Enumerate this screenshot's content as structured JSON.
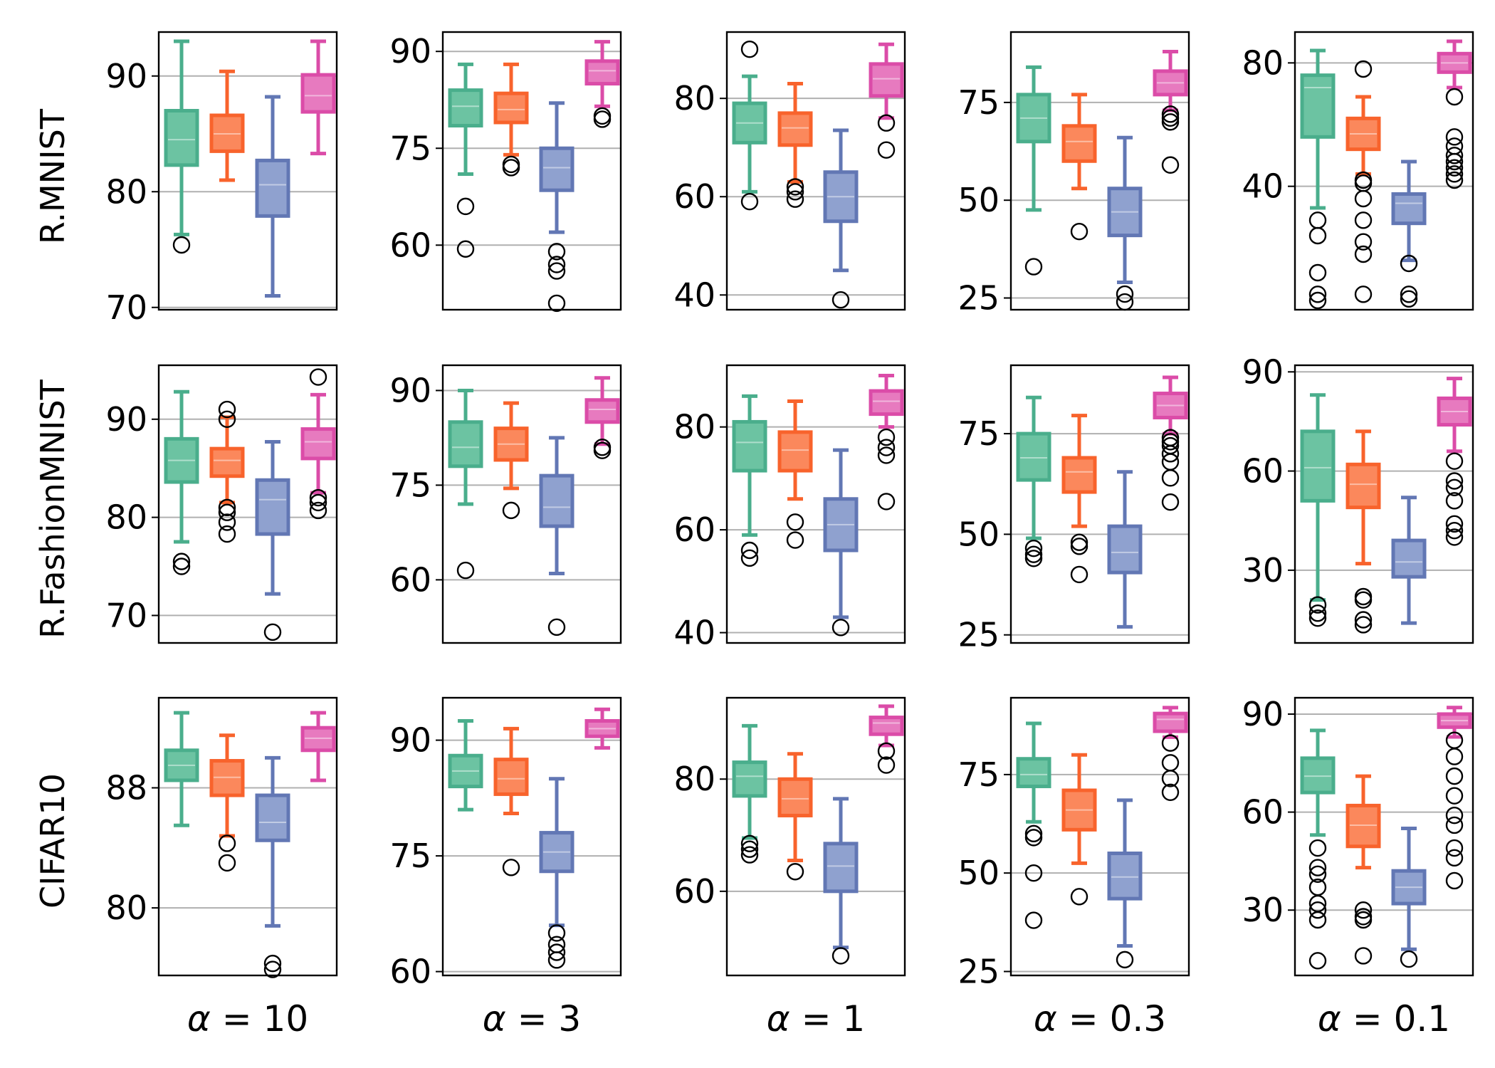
{
  "colors": {
    "series": [
      "#4aae8c",
      "#f8632c",
      "#6277b4",
      "#db4ca8"
    ],
    "fill": [
      "#6cc3a2",
      "#fb885c",
      "#8fa1cf",
      "#e77abf"
    ],
    "grid": "#b0b0b0"
  },
  "rows": [
    "R.MNIST",
    "R.FashionMNIST",
    "CIFAR10"
  ],
  "cols": [
    {
      "label": "α = 10",
      "var": "α",
      "value": "10"
    },
    {
      "label": "α = 3",
      "var": "α",
      "value": "3"
    },
    {
      "label": "α = 1",
      "var": "α",
      "value": "1"
    },
    {
      "label": "α = 0.3",
      "var": "α",
      "value": "0.3"
    },
    {
      "label": "α = 0.1",
      "var": "α",
      "value": "0.1"
    }
  ],
  "chart_data": [
    {
      "type": "box",
      "row": "R.MNIST",
      "col": "α = 10",
      "ylim": [
        69.8,
        93.8
      ],
      "yticks": [
        70,
        80,
        90
      ],
      "grid": true,
      "boxes": [
        {
          "q1": 82.3,
          "median": 84.5,
          "q3": 87.0,
          "whislo": 76.3,
          "whishi": 93.0,
          "fliers": [
            75.4
          ]
        },
        {
          "q1": 83.5,
          "median": 85.0,
          "q3": 86.6,
          "whislo": 81.0,
          "whishi": 90.4,
          "fliers": []
        },
        {
          "q1": 77.9,
          "median": 80.6,
          "q3": 82.7,
          "whislo": 71.0,
          "whishi": 88.2,
          "fliers": []
        },
        {
          "q1": 86.9,
          "median": 88.3,
          "q3": 90.1,
          "whislo": 83.3,
          "whishi": 93.0,
          "fliers": []
        }
      ]
    },
    {
      "type": "box",
      "row": "R.MNIST",
      "col": "α = 3",
      "ylim": [
        50,
        93
      ],
      "yticks": [
        60,
        75,
        90
      ],
      "grid": true,
      "boxes": [
        {
          "q1": 78.5,
          "median": 81.5,
          "q3": 84.0,
          "whislo": 71.0,
          "whishi": 88.0,
          "fliers": [
            66.0,
            59.4
          ]
        },
        {
          "q1": 79.0,
          "median": 81.0,
          "q3": 83.5,
          "whislo": 74.0,
          "whishi": 88.0,
          "fliers": [
            72.5,
            72.0
          ]
        },
        {
          "q1": 68.5,
          "median": 72.0,
          "q3": 75.0,
          "whislo": 62.0,
          "whishi": 82.0,
          "fliers": [
            59.0,
            57.0,
            56.0,
            51.0
          ]
        },
        {
          "q1": 85.0,
          "median": 87.0,
          "q3": 88.5,
          "whislo": 81.5,
          "whishi": 91.5,
          "fliers": [
            80.0,
            79.5
          ]
        }
      ]
    },
    {
      "type": "box",
      "row": "R.MNIST",
      "col": "α = 1",
      "ylim": [
        37,
        93.5
      ],
      "yticks": [
        40,
        60,
        80
      ],
      "grid": true,
      "boxes": [
        {
          "q1": 71.0,
          "median": 75.0,
          "q3": 79.0,
          "whislo": 61.0,
          "whishi": 84.5,
          "fliers": [
            59.0,
            90.0
          ]
        },
        {
          "q1": 70.5,
          "median": 74.0,
          "q3": 77.0,
          "whislo": 63.0,
          "whishi": 83.0,
          "fliers": [
            62.0,
            61.0,
            59.5
          ]
        },
        {
          "q1": 55.0,
          "median": 60.0,
          "q3": 65.0,
          "whislo": 45.0,
          "whishi": 73.5,
          "fliers": [
            39.0
          ]
        },
        {
          "q1": 80.5,
          "median": 84.0,
          "q3": 87.0,
          "whislo": 76.0,
          "whishi": 91.0,
          "fliers": [
            75.0,
            69.5
          ]
        }
      ]
    },
    {
      "type": "box",
      "row": "R.MNIST",
      "col": "α = 0.3",
      "ylim": [
        22,
        93
      ],
      "yticks": [
        25,
        50,
        75
      ],
      "grid": true,
      "boxes": [
        {
          "q1": 65.0,
          "median": 71.0,
          "q3": 77.0,
          "whislo": 47.5,
          "whishi": 84.0,
          "fliers": [
            33.0
          ]
        },
        {
          "q1": 60.0,
          "median": 65.0,
          "q3": 69.0,
          "whislo": 53.0,
          "whishi": 77.0,
          "fliers": [
            42.0
          ]
        },
        {
          "q1": 41.0,
          "median": 47.0,
          "q3": 53.0,
          "whislo": 29.0,
          "whishi": 66.0,
          "fliers": [
            26.0,
            24.0
          ]
        },
        {
          "q1": 77.0,
          "median": 80.0,
          "q3": 83.0,
          "whislo": 73.0,
          "whishi": 88.0,
          "fliers": [
            72.0,
            71.0,
            70.0,
            59.0
          ]
        }
      ]
    },
    {
      "type": "box",
      "row": "R.MNIST",
      "col": "α = 0.1",
      "ylim": [
        0,
        90
      ],
      "yticks": [
        40,
        80
      ],
      "grid": true,
      "boxes": [
        {
          "q1": 56.0,
          "median": 72.0,
          "q3": 76.0,
          "whislo": 33.0,
          "whishi": 84.0,
          "fliers": [
            29.0,
            24.0,
            12.0,
            5.0,
            3.0
          ]
        },
        {
          "q1": 52.0,
          "median": 57.0,
          "q3": 62.0,
          "whislo": 44.0,
          "whishi": 69.0,
          "fliers": [
            78.0,
            42.0,
            41.0,
            36.0,
            29.0,
            22.0,
            18.0,
            5.0
          ]
        },
        {
          "q1": 28.0,
          "median": 34.5,
          "q3": 37.5,
          "whislo": 16.0,
          "whishi": 48.0,
          "fliers": [
            15.0,
            5.0,
            3.5
          ]
        },
        {
          "q1": 77.0,
          "median": 80.0,
          "q3": 83.0,
          "whislo": 72.0,
          "whishi": 87.0,
          "fliers": [
            69.0,
            56.0,
            53.0,
            50.0,
            48.0,
            46.0,
            44.0,
            42.0
          ]
        }
      ]
    },
    {
      "type": "box",
      "row": "R.FashionMNIST",
      "col": "α = 10",
      "ylim": [
        67.2,
        95.5
      ],
      "yticks": [
        70,
        80,
        90
      ],
      "grid": true,
      "boxes": [
        {
          "q1": 83.6,
          "median": 85.8,
          "q3": 88.0,
          "whislo": 77.5,
          "whishi": 92.8,
          "fliers": [
            75.5,
            75.0
          ]
        },
        {
          "q1": 84.2,
          "median": 85.8,
          "q3": 87.0,
          "whislo": 81.5,
          "whishi": 90.2,
          "fliers": [
            91.0,
            90.0,
            81.0,
            80.5,
            79.5,
            78.3
          ]
        },
        {
          "q1": 78.3,
          "median": 81.8,
          "q3": 83.8,
          "whislo": 72.2,
          "whishi": 87.7,
          "fliers": [
            68.3
          ]
        },
        {
          "q1": 86.0,
          "median": 87.7,
          "q3": 89.0,
          "whislo": 82.5,
          "whishi": 92.5,
          "fliers": [
            94.3,
            82.0,
            81.5,
            80.7
          ]
        }
      ]
    },
    {
      "type": "box",
      "row": "R.FashionMNIST",
      "col": "α = 3",
      "ylim": [
        50,
        94
      ],
      "yticks": [
        60,
        75,
        90
      ],
      "grid": true,
      "boxes": [
        {
          "q1": 78.0,
          "median": 81.0,
          "q3": 85.0,
          "whislo": 72.0,
          "whishi": 90.0,
          "fliers": [
            61.5
          ]
        },
        {
          "q1": 79.0,
          "median": 81.5,
          "q3": 84.0,
          "whislo": 74.5,
          "whishi": 88.0,
          "fliers": [
            71.0
          ]
        },
        {
          "q1": 68.5,
          "median": 71.5,
          "q3": 76.5,
          "whislo": 61.0,
          "whishi": 82.5,
          "fliers": [
            52.5
          ]
        },
        {
          "q1": 85.0,
          "median": 87.0,
          "q3": 88.5,
          "whislo": 81.5,
          "whishi": 92.0,
          "fliers": [
            81.0,
            80.5
          ]
        }
      ]
    },
    {
      "type": "box",
      "row": "R.FashionMNIST",
      "col": "α = 1",
      "ylim": [
        38,
        92
      ],
      "yticks": [
        40,
        60,
        80
      ],
      "grid": true,
      "boxes": [
        {
          "q1": 71.5,
          "median": 77.0,
          "q3": 81.0,
          "whislo": 59.0,
          "whishi": 86.0,
          "fliers": [
            56.0,
            54.5
          ]
        },
        {
          "q1": 71.5,
          "median": 75.5,
          "q3": 79.0,
          "whislo": 66.0,
          "whishi": 85.0,
          "fliers": [
            61.5,
            58.0
          ]
        },
        {
          "q1": 56.0,
          "median": 61.0,
          "q3": 66.0,
          "whislo": 43.0,
          "whishi": 75.5,
          "fliers": [
            41.0
          ]
        },
        {
          "q1": 82.5,
          "median": 85.0,
          "q3": 87.0,
          "whislo": 80.0,
          "whishi": 90.0,
          "fliers": [
            78.0,
            76.0,
            74.5,
            65.5
          ]
        }
      ]
    },
    {
      "type": "box",
      "row": "R.FashionMNIST",
      "col": "α = 0.3",
      "ylim": [
        23,
        92
      ],
      "yticks": [
        25,
        50,
        75
      ],
      "grid": true,
      "boxes": [
        {
          "q1": 63.5,
          "median": 69.0,
          "q3": 75.0,
          "whislo": 49.0,
          "whishi": 84.0,
          "fliers": [
            46.5,
            45.0,
            44.0
          ]
        },
        {
          "q1": 60.5,
          "median": 65.5,
          "q3": 69.0,
          "whislo": 52.0,
          "whishi": 79.5,
          "fliers": [
            48.0,
            47.0,
            40.0
          ]
        },
        {
          "q1": 40.5,
          "median": 45.5,
          "q3": 52.0,
          "whislo": 27.0,
          "whishi": 65.5,
          "fliers": []
        },
        {
          "q1": 79.0,
          "median": 82.0,
          "q3": 85.0,
          "whislo": 75.0,
          "whishi": 89.0,
          "fliers": [
            74.0,
            73.0,
            72.0,
            70.0,
            68.0,
            64.0,
            58.0
          ]
        }
      ]
    },
    {
      "type": "box",
      "row": "R.FashionMNIST",
      "col": "α = 0.1",
      "ylim": [
        8,
        92
      ],
      "yticks": [
        30,
        60,
        90
      ],
      "grid": true,
      "boxes": [
        {
          "q1": 51.0,
          "median": 61.0,
          "q3": 72.0,
          "whislo": 21.0,
          "whishi": 83.0,
          "fliers": [
            19.5,
            17.0,
            15.5
          ]
        },
        {
          "q1": 49.0,
          "median": 56.0,
          "q3": 62.0,
          "whislo": 32.0,
          "whishi": 72.0,
          "fliers": [
            22.0,
            21.0,
            15.0,
            13.5
          ]
        },
        {
          "q1": 28.0,
          "median": 32.5,
          "q3": 39.0,
          "whislo": 14.0,
          "whishi": 52.0,
          "fliers": []
        },
        {
          "q1": 74.0,
          "median": 78.0,
          "q3": 82.0,
          "whislo": 66.0,
          "whishi": 88.0,
          "fliers": [
            63.0,
            57.0,
            55.0,
            51.0,
            44.0,
            42.0,
            40.0
          ]
        }
      ]
    },
    {
      "type": "box",
      "row": "CIFAR10",
      "col": "α = 10",
      "ylim": [
        75.5,
        94
      ],
      "yticks": [
        80,
        88
      ],
      "grid": true,
      "boxes": [
        {
          "q1": 88.5,
          "median": 89.5,
          "q3": 90.5,
          "whislo": 85.5,
          "whishi": 93.0,
          "fliers": []
        },
        {
          "q1": 87.5,
          "median": 88.7,
          "q3": 89.8,
          "whislo": 84.8,
          "whishi": 91.5,
          "fliers": [
            84.3,
            83.0
          ]
        },
        {
          "q1": 84.5,
          "median": 85.7,
          "q3": 87.5,
          "whislo": 78.8,
          "whishi": 90.0,
          "fliers": [
            76.3,
            75.9
          ]
        },
        {
          "q1": 90.5,
          "median": 91.3,
          "q3": 92.0,
          "whislo": 88.5,
          "whishi": 93.0,
          "fliers": []
        }
      ]
    },
    {
      "type": "box",
      "row": "CIFAR10",
      "col": "α = 3",
      "ylim": [
        59.5,
        95.5
      ],
      "yticks": [
        60,
        75,
        90
      ],
      "grid": true,
      "boxes": [
        {
          "q1": 84.0,
          "median": 86.0,
          "q3": 88.0,
          "whislo": 81.0,
          "whishi": 92.5,
          "fliers": []
        },
        {
          "q1": 83.0,
          "median": 85.0,
          "q3": 87.5,
          "whislo": 80.5,
          "whishi": 91.5,
          "fliers": [
            73.5
          ]
        },
        {
          "q1": 73.0,
          "median": 75.5,
          "q3": 78.0,
          "whislo": 66.0,
          "whishi": 85.0,
          "fliers": [
            65.0,
            63.5,
            62.5,
            61.5
          ]
        },
        {
          "q1": 90.5,
          "median": 91.5,
          "q3": 92.5,
          "whislo": 89.0,
          "whishi": 94.0,
          "fliers": []
        }
      ]
    },
    {
      "type": "box",
      "row": "CIFAR10",
      "col": "α = 1",
      "ylim": [
        45,
        94.5
      ],
      "yticks": [
        60,
        80
      ],
      "grid": true,
      "boxes": [
        {
          "q1": 77.0,
          "median": 80.5,
          "q3": 83.0,
          "whislo": 69.5,
          "whishi": 89.5,
          "fliers": [
            68.5,
            67.5,
            66.5
          ]
        },
        {
          "q1": 73.5,
          "median": 76.5,
          "q3": 80.0,
          "whislo": 65.5,
          "whishi": 84.5,
          "fliers": [
            63.5
          ]
        },
        {
          "q1": 60.0,
          "median": 64.5,
          "q3": 68.5,
          "whislo": 50.0,
          "whishi": 76.5,
          "fliers": [
            48.5
          ]
        },
        {
          "q1": 88.0,
          "median": 90.0,
          "q3": 91.0,
          "whislo": 86.0,
          "whishi": 93.0,
          "fliers": [
            85.0,
            82.5
          ]
        }
      ]
    },
    {
      "type": "box",
      "row": "CIFAR10",
      "col": "α = 0.3",
      "ylim": [
        24,
        94.5
      ],
      "yticks": [
        25,
        50,
        75
      ],
      "grid": true,
      "boxes": [
        {
          "q1": 72.0,
          "median": 75.0,
          "q3": 79.0,
          "whislo": 63.0,
          "whishi": 88.0,
          "fliers": [
            60.0,
            59.0,
            50.0,
            38.0
          ]
        },
        {
          "q1": 61.0,
          "median": 66.0,
          "q3": 71.0,
          "whislo": 52.5,
          "whishi": 80.0,
          "fliers": [
            44.0
          ]
        },
        {
          "q1": 43.5,
          "median": 49.0,
          "q3": 55.0,
          "whislo": 31.5,
          "whishi": 68.5,
          "fliers": [
            28.0
          ]
        },
        {
          "q1": 86.0,
          "median": 89.0,
          "q3": 90.5,
          "whislo": 84.5,
          "whishi": 92.0,
          "fliers": [
            83.0,
            78.0,
            74.0,
            70.5
          ]
        }
      ]
    },
    {
      "type": "box",
      "row": "CIFAR10",
      "col": "α = 0.1",
      "ylim": [
        10,
        95
      ],
      "yticks": [
        30,
        60,
        90
      ],
      "grid": true,
      "boxes": [
        {
          "q1": 66.0,
          "median": 71.0,
          "q3": 76.5,
          "whislo": 53.0,
          "whishi": 85.0,
          "fliers": [
            49.0,
            43.0,
            41.0,
            37.0,
            32.0,
            30.0,
            27.0,
            14.5
          ]
        },
        {
          "q1": 49.5,
          "median": 56.0,
          "q3": 62.0,
          "whislo": 43.0,
          "whishi": 71.0,
          "fliers": [
            30.0,
            28.0,
            27.0,
            16.0
          ]
        },
        {
          "q1": 32.0,
          "median": 37.0,
          "q3": 42.0,
          "whislo": 18.0,
          "whishi": 55.0,
          "fliers": [
            15.0
          ]
        },
        {
          "q1": 86.0,
          "median": 88.0,
          "q3": 90.0,
          "whislo": 83.0,
          "whishi": 92.0,
          "fliers": [
            82.0,
            77.0,
            71.0,
            65.0,
            59.0,
            56.0,
            49.0,
            46.0,
            39.0
          ]
        }
      ]
    }
  ]
}
